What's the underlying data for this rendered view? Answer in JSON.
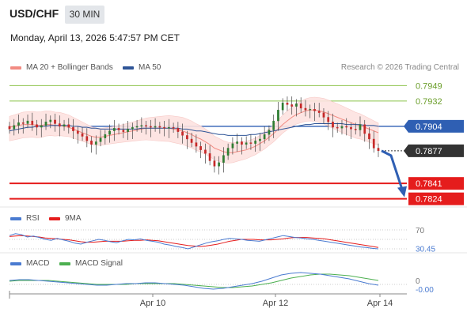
{
  "header": {
    "symbol": "USD/CHF",
    "timeframe": "30 MIN",
    "datetime": "Monday, April 13, 2026 5:47:57 PM CET"
  },
  "legend": {
    "items": [
      {
        "label": "MA 20 + Bollinger Bands",
        "color": "#f28b82"
      },
      {
        "label": "MA 50",
        "color": "#2f5597"
      }
    ],
    "credit": "Research © 2026 Trading Central"
  },
  "price_levels": [
    {
      "value": "0.7949",
      "kind": "resistance",
      "color": "#8bc34a"
    },
    {
      "value": "0.7932",
      "kind": "resistance",
      "color": "#8bc34a"
    },
    {
      "value": "0.7904",
      "kind": "pivot",
      "color": "#2f5fb3"
    },
    {
      "value": "0.7877",
      "kind": "last",
      "color": "#333333"
    },
    {
      "value": "0.7841",
      "kind": "support",
      "color": "#e51c1c"
    },
    {
      "value": "0.7824",
      "kind": "support",
      "color": "#e51c1c"
    }
  ],
  "rsi": {
    "legend": [
      {
        "label": "RSI",
        "color": "#4a7bd1"
      },
      {
        "label": "9MA",
        "color": "#e51c1c"
      }
    ],
    "level_label": "70",
    "value_label": "30.45"
  },
  "macd": {
    "legend": [
      {
        "label": "MACD",
        "color": "#4a7bd1"
      },
      {
        "label": "MACD Signal",
        "color": "#4caf50"
      }
    ],
    "zero_label": "0",
    "value_label": "-0.00"
  },
  "x_axis": {
    "ticks": [
      "Apr 10",
      "Apr 12",
      "Apr 14"
    ]
  },
  "chart_data": {
    "type": "candlestick",
    "ylim": [
      0.7815,
      0.7958
    ],
    "close_series": [
      0.7901,
      0.7905,
      0.7908,
      0.7907,
      0.791,
      0.7906,
      0.7903,
      0.7905,
      0.7909,
      0.7911,
      0.7907,
      0.7904,
      0.7906,
      0.7903,
      0.7899,
      0.7896,
      0.7893,
      0.7888,
      0.7884,
      0.7887,
      0.7891,
      0.7895,
      0.7899,
      0.7902,
      0.79,
      0.7898,
      0.7901,
      0.7903,
      0.7904,
      0.7905,
      0.7904,
      0.7903,
      0.7904,
      0.7903,
      0.7902,
      0.7903,
      0.7902,
      0.7898,
      0.7894,
      0.789,
      0.7886,
      0.7882,
      0.7878,
      0.7874,
      0.7866,
      0.786,
      0.7864,
      0.7872,
      0.788,
      0.7885,
      0.7887,
      0.7884,
      0.7886,
      0.7885,
      0.7888,
      0.789,
      0.7895,
      0.79,
      0.791,
      0.7922,
      0.793,
      0.7928,
      0.7926,
      0.7929,
      0.7924,
      0.7922,
      0.7923,
      0.7921,
      0.7919,
      0.7914,
      0.7909,
      0.7903,
      0.7902,
      0.7904,
      0.7903,
      0.7901,
      0.79,
      0.7906,
      0.7896,
      0.789,
      0.788,
      0.7877
    ],
    "ma20_series": [
      0.7903,
      0.7904,
      0.7905,
      0.7906,
      0.7906,
      0.7906,
      0.7905,
      0.7905,
      0.7906,
      0.7906,
      0.7905,
      0.7905,
      0.7904,
      0.7903,
      0.7901,
      0.7899,
      0.7897,
      0.7895,
      0.7893,
      0.7892,
      0.7892,
      0.7893,
      0.7894,
      0.7895,
      0.7896,
      0.7897,
      0.7898,
      0.7899,
      0.79,
      0.7901,
      0.7902,
      0.7902,
      0.7902,
      0.7902,
      0.7902,
      0.7902,
      0.7901,
      0.79,
      0.7899,
      0.7897,
      0.7895,
      0.7892,
      0.789,
      0.7887,
      0.7884,
      0.788,
      0.7878,
      0.7876,
      0.7875,
      0.7875,
      0.7876,
      0.7877,
      0.7878,
      0.788,
      0.7882,
      0.7885,
      0.7888,
      0.7892,
      0.7896,
      0.7901,
      0.7906,
      0.791,
      0.7914,
      0.7917,
      0.7919,
      0.7921,
      0.7922,
      0.7922,
      0.7921,
      0.792,
      0.7918,
      0.7916,
      0.7914,
      0.7912,
      0.791,
      0.7908,
      0.7906,
      0.7905,
      0.7903,
      0.7901,
      0.7899,
      0.7897
    ],
    "ma50_series": [
      0.7899,
      0.79,
      0.7901,
      0.7902,
      0.7903,
      0.7903,
      0.7904,
      0.7904,
      0.7904,
      0.7905,
      0.7905,
      0.7905,
      0.7905,
      0.7905,
      0.7904,
      0.7904,
      0.7903,
      0.7903,
      0.7902,
      0.7902,
      0.7901,
      0.7901,
      0.7901,
      0.7901,
      0.7901,
      0.7901,
      0.7901,
      0.7901,
      0.7901,
      0.7902,
      0.7902,
      0.7902,
      0.7902,
      0.7902,
      0.7902,
      0.7902,
      0.7902,
      0.7902,
      0.7901,
      0.7901,
      0.79,
      0.7899,
      0.7899,
      0.7898,
      0.7897,
      0.7896,
      0.7895,
      0.7895,
      0.7894,
      0.7894,
      0.7894,
      0.7894,
      0.7894,
      0.7895,
      0.7895,
      0.7896,
      0.7897,
      0.7898,
      0.7899,
      0.79,
      0.7901,
      0.7902,
      0.7903,
      0.7904,
      0.7905,
      0.7906,
      0.7906,
      0.7907,
      0.7907,
      0.7907,
      0.7907,
      0.7907,
      0.7907,
      0.7907,
      0.7906,
      0.7906,
      0.7906,
      0.7906,
      0.7905,
      0.7905,
      0.7905,
      0.7904
    ],
    "rsi_series": [
      58,
      62,
      60,
      55,
      57,
      54,
      50,
      48,
      52,
      49,
      46,
      42,
      40,
      44,
      47,
      50,
      48,
      45,
      43,
      47,
      50,
      49,
      51,
      48,
      46,
      44,
      40,
      38,
      35,
      33,
      30,
      34,
      38,
      42,
      45,
      47,
      50,
      52,
      51,
      50,
      48,
      47,
      46,
      49,
      52,
      55,
      58,
      56,
      54,
      53,
      51,
      50,
      48,
      46,
      44,
      42,
      40,
      38,
      36,
      34,
      33,
      31,
      30
    ],
    "rsi_ma_series": [
      56,
      57,
      58,
      57,
      56,
      55,
      53,
      52,
      51,
      50,
      49,
      47,
      45,
      44,
      44,
      45,
      46,
      46,
      46,
      46,
      47,
      48,
      48,
      49,
      48,
      47,
      45,
      43,
      41,
      39,
      37,
      36,
      35,
      36,
      38,
      40,
      43,
      46,
      48,
      50,
      50,
      50,
      49,
      49,
      49,
      50,
      51,
      53,
      54,
      54,
      54,
      53,
      52,
      51,
      49,
      47,
      45,
      43,
      41,
      39,
      37,
      35,
      33
    ],
    "macd_series": [
      0.0005,
      0.0006,
      0.0006,
      0.0005,
      0.0004,
      0.0003,
      0.0002,
      0.0001,
      0.0,
      -0.0001,
      -0.0001,
      0.0,
      0.0001,
      0.0001,
      0.0002,
      0.0002,
      0.0001,
      0.0,
      -0.0001,
      -0.0003,
      -0.0005,
      -0.0006,
      -0.0005,
      -0.0003,
      -0.0001,
      0.0001,
      0.0004,
      0.0008,
      0.0012,
      0.0014,
      0.0015,
      0.0014,
      0.0013,
      0.0011,
      0.0009,
      0.0007,
      0.0004,
      0.0001,
      -0.0001
    ],
    "macd_signal_series": [
      0.0004,
      0.0005,
      0.0005,
      0.0005,
      0.0005,
      0.0004,
      0.0003,
      0.0002,
      0.0001,
      0.0,
      0.0,
      0.0,
      0.0,
      0.0001,
      0.0001,
      0.0001,
      0.0001,
      0.0001,
      0.0,
      -0.0001,
      -0.0002,
      -0.0003,
      -0.0004,
      -0.0004,
      -0.0003,
      -0.0002,
      0.0,
      0.0002,
      0.0005,
      0.0008,
      0.001,
      0.0012,
      0.0013,
      0.0013,
      0.0012,
      0.0011,
      0.0009,
      0.0007,
      0.0005
    ]
  }
}
